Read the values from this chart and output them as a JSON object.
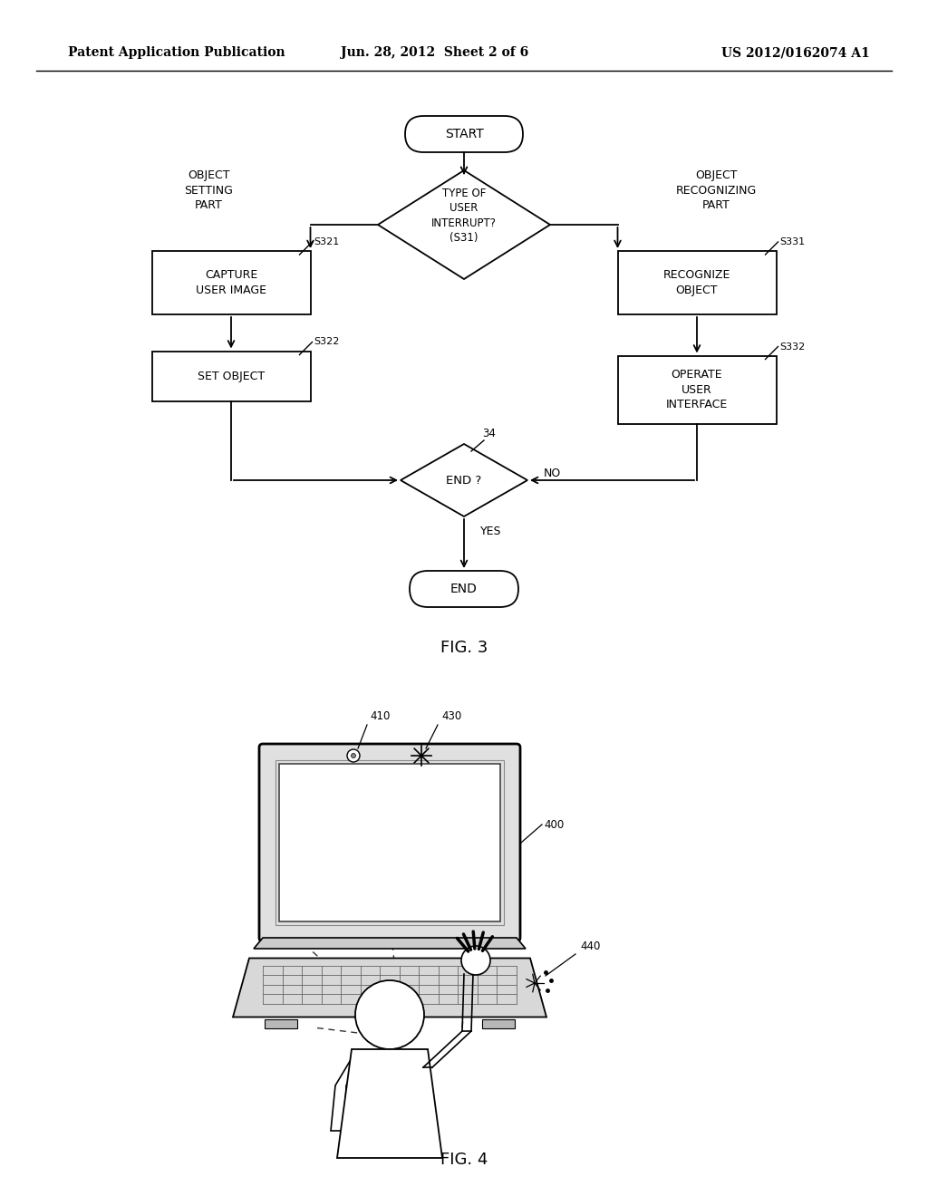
{
  "bg_color": "#ffffff",
  "header_left": "Patent Application Publication",
  "header_center": "Jun. 28, 2012  Sheet 2 of 6",
  "header_right": "US 2012/0162074 A1",
  "fig3_label": "FIG. 3",
  "fig4_label": "FIG. 4",
  "line_color": "#000000",
  "text_color": "#000000"
}
